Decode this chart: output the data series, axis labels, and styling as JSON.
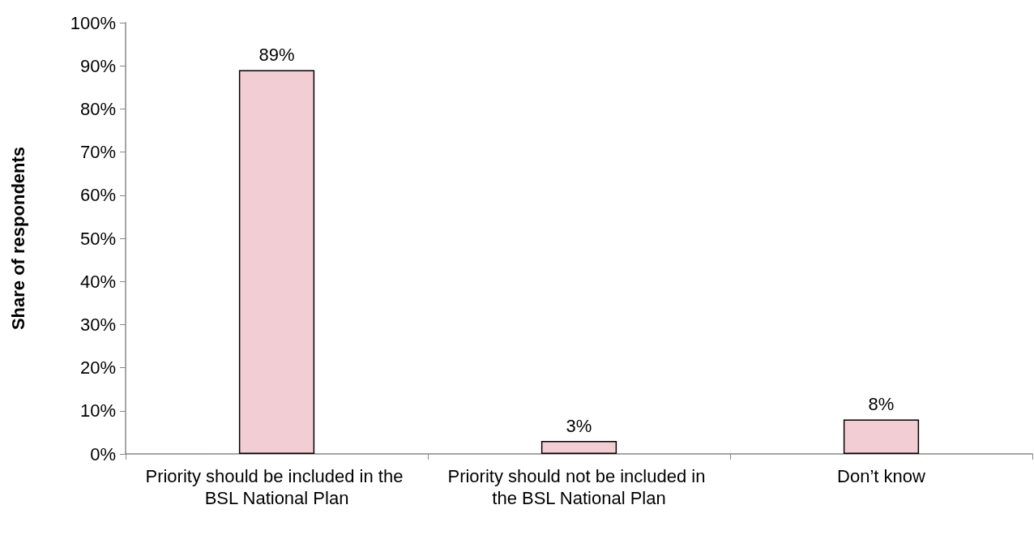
{
  "chart_data": {
    "type": "bar",
    "ylabel": "Share of respondents",
    "categories": [
      "Priority should be included in the BSL National Plan",
      "Priority should not be included in the BSL National Plan",
      "Don’t know"
    ],
    "values": [
      89,
      3,
      8
    ],
    "value_labels": [
      "89%",
      "3%",
      "8%"
    ],
    "color": "#f2cdd4",
    "ylim": [
      0,
      100
    ],
    "yticks": [
      {
        "value": 0,
        "label": "0%"
      },
      {
        "value": 10,
        "label": "10%"
      },
      {
        "value": 20,
        "label": "20%"
      },
      {
        "value": 30,
        "label": "30%"
      },
      {
        "value": 40,
        "label": "40%"
      },
      {
        "value": 50,
        "label": "50%"
      },
      {
        "value": 60,
        "label": "60%"
      },
      {
        "value": 70,
        "label": "70%"
      },
      {
        "value": 80,
        "label": "80%"
      },
      {
        "value": 90,
        "label": "90%"
      },
      {
        "value": 100,
        "label": "100%"
      }
    ],
    "grid": false
  }
}
